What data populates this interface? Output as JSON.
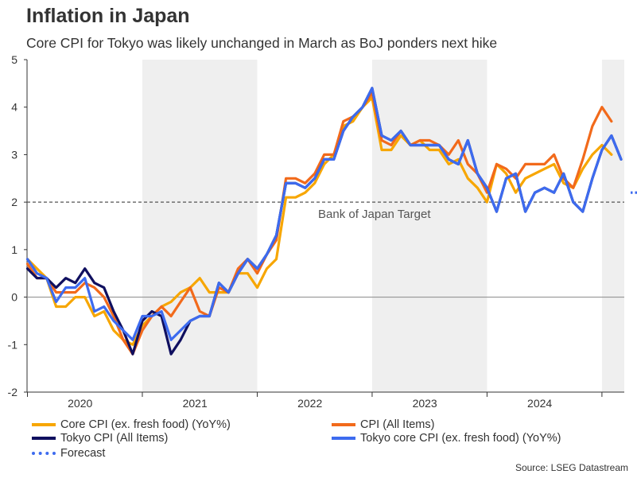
{
  "title": "Inflation in Japan",
  "subtitle": "Core CPI for Tokyo was likely unchanged in March as BoJ ponders next hike",
  "source": "Source: LSEG Datastream",
  "chart_data": {
    "type": "line",
    "x_start": "2020-01",
    "frequency": "monthly",
    "ylim": [
      -2,
      5
    ],
    "yticks": [
      "5",
      "4",
      "3",
      "2",
      "1",
      "0",
      "-1",
      "-2"
    ],
    "ytick_values": [
      5,
      4,
      3,
      2,
      1,
      0,
      -1,
      -2
    ],
    "year_labels": [
      "2020",
      "2021",
      "2022",
      "2023",
      "2024"
    ],
    "shaded_years": [
      2021,
      2023,
      2025
    ],
    "reference_line": {
      "value": 2,
      "label": "Bank of Japan Target"
    },
    "series": [
      {
        "name": "Core CPI (ex. fresh food) (YoY%)",
        "color": "#F7A600",
        "values": [
          0.8,
          0.6,
          0.4,
          -0.2,
          -0.2,
          0.0,
          0.0,
          -0.4,
          -0.3,
          -0.7,
          -0.9,
          -1.0,
          -0.6,
          -0.4,
          -0.2,
          -0.1,
          0.1,
          0.2,
          0.4,
          0.1,
          0.1,
          0.1,
          0.5,
          0.5,
          0.2,
          0.6,
          0.8,
          2.1,
          2.1,
          2.2,
          2.4,
          2.8,
          3.0,
          3.6,
          3.7,
          4.0,
          4.2,
          3.1,
          3.1,
          3.4,
          3.2,
          3.3,
          3.1,
          3.1,
          2.8,
          2.9,
          2.5,
          2.3,
          2.0,
          2.8,
          2.6,
          2.2,
          2.5,
          2.6,
          2.7,
          2.8,
          2.4,
          2.3,
          2.7,
          3.0,
          3.2,
          3.0
        ]
      },
      {
        "name": "CPI (All Items)",
        "color": "#F26A1B",
        "values": [
          0.7,
          0.4,
          0.4,
          0.1,
          0.1,
          0.1,
          0.3,
          0.2,
          0.0,
          -0.4,
          -0.9,
          -1.2,
          -0.7,
          -0.4,
          -0.2,
          -0.4,
          -0.1,
          0.2,
          -0.3,
          -0.4,
          0.2,
          0.1,
          0.6,
          0.8,
          0.5,
          0.9,
          1.2,
          2.5,
          2.5,
          2.4,
          2.6,
          3.0,
          3.0,
          3.7,
          3.8,
          4.0,
          4.3,
          3.3,
          3.2,
          3.5,
          3.2,
          3.3,
          3.3,
          3.2,
          3.0,
          3.3,
          2.8,
          2.6,
          2.2,
          2.8,
          2.7,
          2.5,
          2.8,
          2.8,
          2.8,
          3.0,
          2.5,
          2.3,
          2.9,
          3.6,
          4.0,
          3.7
        ]
      },
      {
        "name": "Tokyo CPI (All Items)",
        "color": "#0F0F5F",
        "values": [
          0.6,
          0.4,
          0.4,
          0.2,
          0.4,
          0.3,
          0.6,
          0.3,
          0.2,
          -0.3,
          -0.7,
          -1.2,
          -0.5,
          -0.3,
          -0.4,
          -1.2,
          -0.9,
          -0.5,
          -0.4,
          -0.4,
          0.3,
          0.1,
          0.5,
          0.8,
          0.6,
          0.9,
          1.3,
          2.4,
          2.4,
          2.3,
          2.5,
          2.9,
          2.9,
          3.5,
          3.8,
          4.0,
          4.4,
          3.4,
          3.3,
          3.5,
          3.2,
          3.2,
          3.2,
          3.2,
          2.9,
          2.8,
          3.3,
          2.6,
          2.3,
          1.8,
          2.5,
          2.6,
          1.8,
          2.2,
          2.3,
          2.2,
          2.6,
          2.0,
          1.8,
          2.5,
          3.1,
          3.4,
          2.9
        ]
      },
      {
        "name": "Tokyo core CPI (ex. fresh food) (YoY%)",
        "color": "#3D6BEF",
        "values": [
          0.8,
          0.5,
          0.4,
          -0.1,
          0.2,
          0.2,
          0.4,
          -0.3,
          -0.2,
          -0.5,
          -0.7,
          -0.9,
          -0.4,
          -0.4,
          -0.3,
          -0.9,
          -0.7,
          -0.5,
          -0.4,
          -0.4,
          0.3,
          0.1,
          0.5,
          0.8,
          0.6,
          0.9,
          1.3,
          2.4,
          2.4,
          2.3,
          2.5,
          2.9,
          2.9,
          3.5,
          3.8,
          4.0,
          4.4,
          3.4,
          3.3,
          3.5,
          3.2,
          3.2,
          3.2,
          3.2,
          2.9,
          2.8,
          3.3,
          2.6,
          2.3,
          1.8,
          2.5,
          2.6,
          1.8,
          2.2,
          2.3,
          2.2,
          2.6,
          2.0,
          1.8,
          2.5,
          3.1,
          3.4,
          2.9
        ]
      }
    ],
    "forecast": {
      "name": "Forecast",
      "color": "#3D6BEF",
      "values": [
        2.2,
        2.2
      ]
    }
  },
  "legend": [
    {
      "label": "Core CPI (ex. fresh food) (YoY%)",
      "color": "#F7A600",
      "style": "solid"
    },
    {
      "label": "CPI (All Items)",
      "color": "#F26A1B",
      "style": "solid"
    },
    {
      "label": "Tokyo CPI (All Items)",
      "color": "#0F0F5F",
      "style": "solid"
    },
    {
      "label": "Tokyo core CPI (ex. fresh food) (YoY%)",
      "color": "#3D6BEF",
      "style": "solid"
    },
    {
      "label": "Forecast",
      "color": "#3D6BEF",
      "style": "dotted"
    }
  ]
}
